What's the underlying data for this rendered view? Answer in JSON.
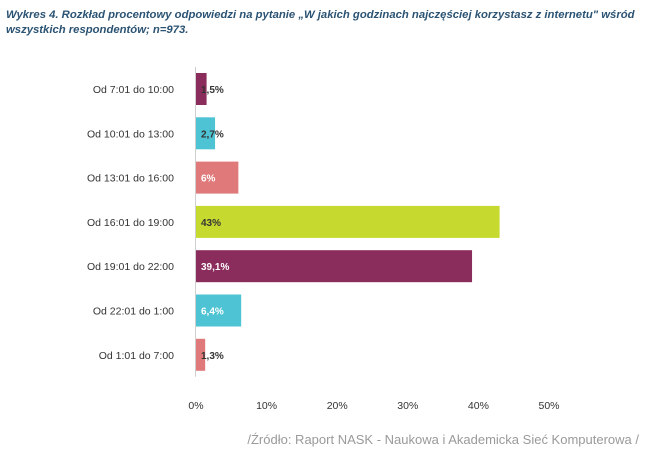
{
  "chart_data": {
    "type": "bar",
    "orientation": "horizontal",
    "title": "Wykres 4. Rozkład procentowy odpowiedzi na pytanie „W jakich godzinach najczęściej korzystasz z internetu\" wśród wszystkich respondentów; n=973.",
    "categories": [
      "Od 7:01 do 10:00",
      "Od 10:01 do 13:00",
      "Od 13:01 do 16:00",
      "Od 16:01 do 19:00",
      "Od 19:01 do 22:00",
      "Od 22:01 do 1:00",
      "Od 1:01 do 7:00"
    ],
    "values": [
      1.5,
      2.7,
      6,
      43,
      39.1,
      6.4,
      1.3
    ],
    "value_labels": [
      "1,5%",
      "2,7%",
      "6%",
      "43%",
      "39,1%",
      "6,4%",
      "1,3%"
    ],
    "bar_colors": [
      "#8b2d5c",
      "#4ec3d4",
      "#e07a7a",
      "#c6d92f",
      "#8b2d5c",
      "#4ec3d4",
      "#e07a7a"
    ],
    "label_colors": [
      "#333333",
      "#333333",
      "#ffffff",
      "#333333",
      "#ffffff",
      "#ffffff",
      "#333333"
    ],
    "xlim": [
      0,
      50
    ],
    "x_ticks": [
      0,
      10,
      20,
      30,
      40,
      50
    ],
    "x_tick_labels": [
      "0%",
      "10%",
      "20%",
      "30%",
      "40%",
      "50%"
    ],
    "grid": false,
    "xlabel": "",
    "ylabel": ""
  },
  "source": "/Źródło: Raport NASK - Naukowa i Akademicka Sieć Komputerowa /"
}
